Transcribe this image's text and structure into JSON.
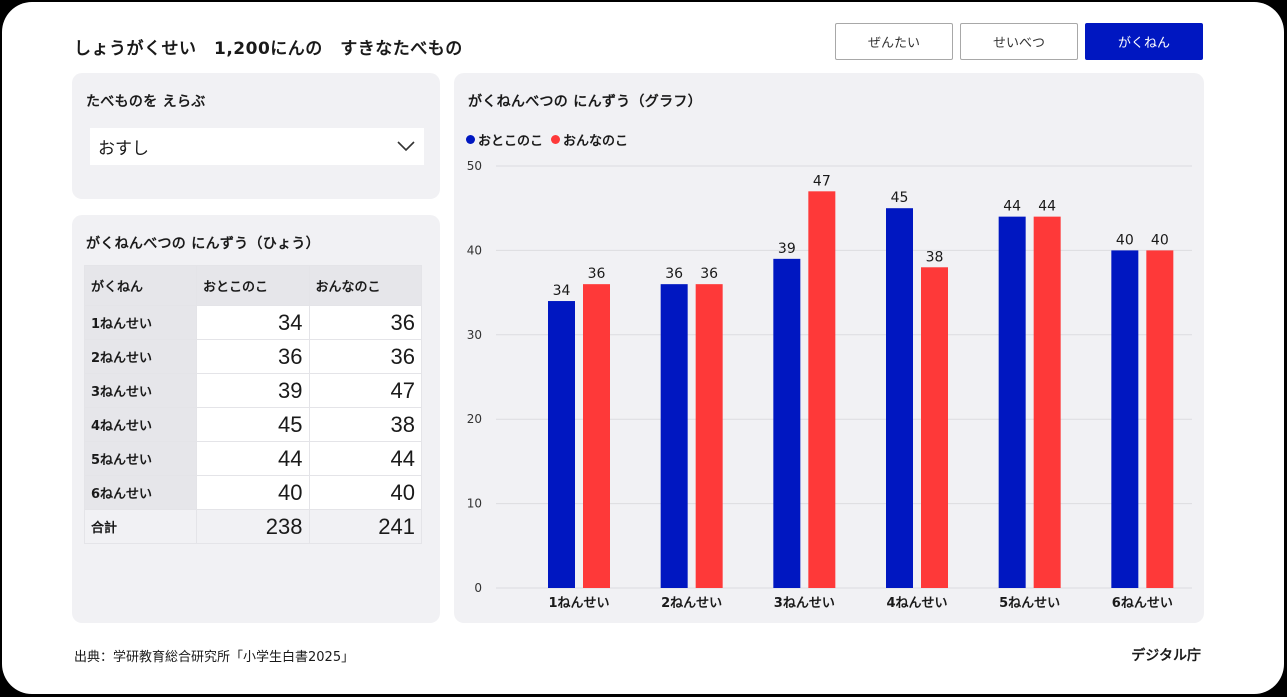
{
  "header": {
    "title": "しょうがくせい　1,200にんの　すきなたべもの",
    "tabs": [
      {
        "label": "ぜんたい",
        "active": false
      },
      {
        "label": "せいべつ",
        "active": false
      },
      {
        "label": "がくねん",
        "active": true
      }
    ]
  },
  "selector": {
    "title": "たべものを えらぶ",
    "value": "おすし"
  },
  "table": {
    "title": "がくねんべつの にんずう（ひょう）",
    "headers": [
      "がくねん",
      "おとこのこ",
      "おんなのこ"
    ],
    "rows": [
      {
        "label": "1ねんせい",
        "boys": "34",
        "girls": "36"
      },
      {
        "label": "2ねんせい",
        "boys": "36",
        "girls": "36"
      },
      {
        "label": "3ねんせい",
        "boys": "39",
        "girls": "47"
      },
      {
        "label": "4ねんせい",
        "boys": "45",
        "girls": "38"
      },
      {
        "label": "5ねんせい",
        "boys": "44",
        "girls": "44"
      },
      {
        "label": "6ねんせい",
        "boys": "40",
        "girls": "40"
      }
    ],
    "total": {
      "label": "合計",
      "boys": "238",
      "girls": "241"
    }
  },
  "chart_panel": {
    "title": "がくねんべつの にんずう（グラフ）"
  },
  "chart_data": {
    "type": "bar",
    "categories": [
      "1ねんせい",
      "2ねんせい",
      "3ねんせい",
      "4ねんせい",
      "5ねんせい",
      "6ねんせい"
    ],
    "series": [
      {
        "name": "おとこのこ",
        "color": "#0017c1",
        "values": [
          34,
          36,
          39,
          45,
          44,
          40
        ]
      },
      {
        "name": "おんなのこ",
        "color": "#fe3939",
        "values": [
          36,
          36,
          47,
          38,
          44,
          40
        ]
      }
    ],
    "y_ticks": [
      0,
      10,
      20,
      30,
      40,
      50
    ],
    "ylim": [
      0,
      50
    ],
    "grid": true,
    "legend": "top-left",
    "data_labels": true
  },
  "footer": {
    "source": "出典：学研教育総合研究所「小学生白書2025」",
    "brand": "デジタル庁"
  },
  "colors": {
    "accent": "#0017c1",
    "boys": "#0017c1",
    "girls": "#fe3939",
    "panel": "#f1f1f4"
  }
}
